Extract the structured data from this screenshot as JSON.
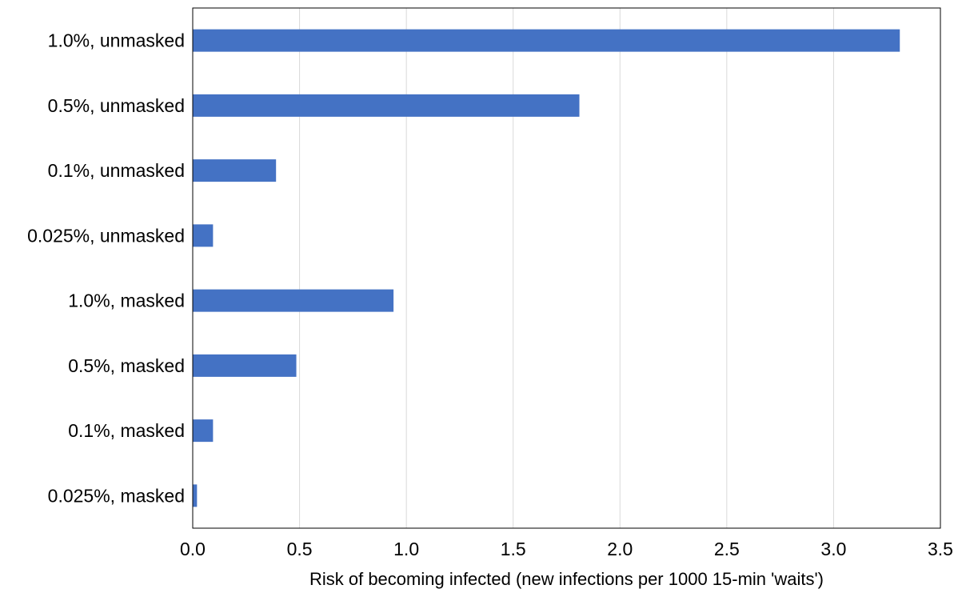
{
  "chart_data": {
    "type": "bar",
    "orientation": "horizontal",
    "categories": [
      "1.0%, unmasked",
      "0.5%, unmasked",
      "0.1%, unmasked",
      "0.025%, unmasked",
      "1.0%, masked",
      "0.5%, masked",
      "0.1%, masked",
      "0.025%, masked"
    ],
    "values": [
      3.31,
      1.81,
      0.39,
      0.095,
      0.94,
      0.485,
      0.095,
      0.02
    ],
    "title": "",
    "xlabel": "Risk of becoming infected (new infections per 1000 15-min 'waits')",
    "ylabel": "",
    "xlim": [
      0,
      3.5
    ],
    "xticks": [
      "0.0",
      "0.5",
      "1.0",
      "1.5",
      "2.0",
      "2.5",
      "3.0",
      "3.5"
    ],
    "grid": "vertical",
    "legend": "none",
    "bar_color": "#4472C4",
    "grid_color": "#d9d9d9",
    "border_color": "#000000"
  }
}
